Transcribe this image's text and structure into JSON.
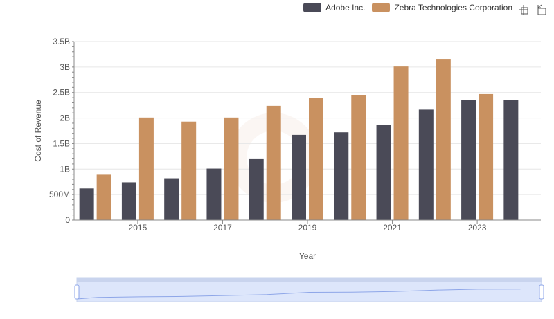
{
  "chart_data": {
    "type": "bar",
    "title": "",
    "xlabel": "Year",
    "ylabel": "Cost of Revenue",
    "x_ticks_shown": [
      "2015",
      "2017",
      "2019",
      "2021",
      "2023"
    ],
    "categories": [
      "2014",
      "2015",
      "2016",
      "2017",
      "2018",
      "2019",
      "2020",
      "2021",
      "2022",
      "2023",
      "2024"
    ],
    "ylim": [
      0,
      3500000000
    ],
    "y_ticks": [
      {
        "value": 0,
        "label": "0"
      },
      {
        "value": 500000000,
        "label": "500M"
      },
      {
        "value": 1000000000,
        "label": "1B"
      },
      {
        "value": 1500000000,
        "label": "1.5B"
      },
      {
        "value": 2000000000,
        "label": "2B"
      },
      {
        "value": 2500000000,
        "label": "2.5B"
      },
      {
        "value": 3000000000,
        "label": "3B"
      },
      {
        "value": 3500000000,
        "label": "3.5B"
      }
    ],
    "grid": true,
    "legend_position": "top-right",
    "series": [
      {
        "name": "Adobe Inc.",
        "color": "#4a4a57",
        "values": [
          620000000,
          740000000,
          820000000,
          1010000000,
          1195000000,
          1670000000,
          1720000000,
          1865000000,
          2165000000,
          2355000000,
          2358000000
        ]
      },
      {
        "name": "Zebra Technologies Corporation",
        "color": "#c99160",
        "values": [
          890000000,
          2010000000,
          1930000000,
          2010000000,
          2240000000,
          2390000000,
          2450000000,
          3010000000,
          3160000000,
          2470000000,
          null
        ]
      }
    ]
  },
  "toolbar": {
    "icons": [
      "crosshair-icon",
      "reset-zoom-icon"
    ]
  }
}
